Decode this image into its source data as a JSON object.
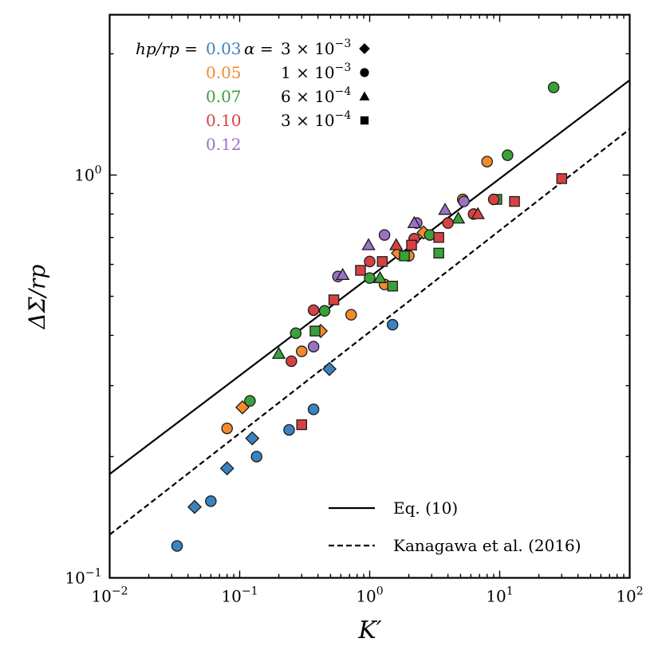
{
  "chart_data": {
    "type": "scatter",
    "title": "",
    "xlabel": "K′",
    "ylabel": "ΔΣ/rp",
    "xscale": "log",
    "yscale": "log",
    "xlim": [
      0.01,
      100
    ],
    "ylim": [
      0.1,
      2.5
    ],
    "xticks": [
      {
        "value": 0.01,
        "base": "10",
        "exp": "−2"
      },
      {
        "value": 0.1,
        "base": "10",
        "exp": "−1"
      },
      {
        "value": 1,
        "base": "10",
        "exp": "0"
      },
      {
        "value": 10,
        "base": "10",
        "exp": "1"
      },
      {
        "value": 100,
        "base": "10",
        "exp": "2"
      }
    ],
    "yticks": [
      {
        "value": 0.1,
        "base": "10",
        "exp": "−1"
      },
      {
        "value": 1,
        "base": "10",
        "exp": "0"
      }
    ],
    "key": {
      "hp_label": "hp/rp =",
      "alpha_label": "α =",
      "hp_entries": [
        {
          "label": "0.03",
          "color": "#3a82c0"
        },
        {
          "label": "0.05",
          "color": "#f5892b"
        },
        {
          "label": "0.07",
          "color": "#3aa13a"
        },
        {
          "label": "0.10",
          "color": "#d84143"
        },
        {
          "label": "0.12",
          "color": "#9a72c4"
        }
      ],
      "alpha_entries": [
        {
          "mantissa": "3 × 10",
          "exp": "−3",
          "marker": "diamond"
        },
        {
          "mantissa": "1 × 10",
          "exp": "−3",
          "marker": "circle"
        },
        {
          "mantissa": "6 × 10",
          "exp": "−4",
          "marker": "triangle"
        },
        {
          "mantissa": "3 × 10",
          "exp": "−4",
          "marker": "square"
        }
      ]
    },
    "lines": [
      {
        "name": "Eq. (10)",
        "style": "solid",
        "x": [
          0.01,
          100
        ],
        "y": [
          0.181,
          1.72
        ]
      },
      {
        "name": "Kanagawa et al. (2016)",
        "style": "dashed",
        "x": [
          0.01,
          100
        ],
        "y": [
          0.128,
          1.3
        ]
      }
    ],
    "legend_position": "bottom-right",
    "points": [
      {
        "x": 0.033,
        "y": 0.12,
        "marker": "circle",
        "color": "#3a82c0"
      },
      {
        "x": 0.06,
        "y": 0.155,
        "marker": "circle",
        "color": "#3a82c0"
      },
      {
        "x": 0.135,
        "y": 0.2,
        "marker": "circle",
        "color": "#3a82c0"
      },
      {
        "x": 0.24,
        "y": 0.233,
        "marker": "circle",
        "color": "#3a82c0"
      },
      {
        "x": 0.37,
        "y": 0.262,
        "marker": "circle",
        "color": "#3a82c0"
      },
      {
        "x": 1.5,
        "y": 0.425,
        "marker": "circle",
        "color": "#3a82c0"
      },
      {
        "x": 0.045,
        "y": 0.15,
        "marker": "diamond",
        "color": "#3a82c0"
      },
      {
        "x": 0.08,
        "y": 0.187,
        "marker": "diamond",
        "color": "#3a82c0"
      },
      {
        "x": 0.125,
        "y": 0.222,
        "marker": "diamond",
        "color": "#3a82c0"
      },
      {
        "x": 0.49,
        "y": 0.33,
        "marker": "diamond",
        "color": "#3a82c0"
      },
      {
        "x": 0.08,
        "y": 0.235,
        "marker": "circle",
        "color": "#f5892b"
      },
      {
        "x": 0.3,
        "y": 0.365,
        "marker": "circle",
        "color": "#f5892b"
      },
      {
        "x": 0.72,
        "y": 0.45,
        "marker": "circle",
        "color": "#f5892b"
      },
      {
        "x": 1.3,
        "y": 0.535,
        "marker": "circle",
        "color": "#f5892b"
      },
      {
        "x": 2.0,
        "y": 0.63,
        "marker": "circle",
        "color": "#f5892b"
      },
      {
        "x": 5.2,
        "y": 0.87,
        "marker": "circle",
        "color": "#f5892b"
      },
      {
        "x": 8.0,
        "y": 1.08,
        "marker": "circle",
        "color": "#f5892b"
      },
      {
        "x": 0.105,
        "y": 0.265,
        "marker": "diamond",
        "color": "#f5892b"
      },
      {
        "x": 0.42,
        "y": 0.41,
        "marker": "diamond",
        "color": "#f5892b"
      },
      {
        "x": 1.65,
        "y": 0.64,
        "marker": "diamond",
        "color": "#f5892b"
      },
      {
        "x": 2.6,
        "y": 0.72,
        "marker": "diamond",
        "color": "#f5892b"
      },
      {
        "x": 0.12,
        "y": 0.275,
        "marker": "circle",
        "color": "#3aa13a"
      },
      {
        "x": 0.27,
        "y": 0.405,
        "marker": "circle",
        "color": "#3aa13a"
      },
      {
        "x": 0.45,
        "y": 0.46,
        "marker": "circle",
        "color": "#3aa13a"
      },
      {
        "x": 1.0,
        "y": 0.555,
        "marker": "circle",
        "color": "#3aa13a"
      },
      {
        "x": 2.9,
        "y": 0.71,
        "marker": "circle",
        "color": "#3aa13a"
      },
      {
        "x": 11.5,
        "y": 1.12,
        "marker": "circle",
        "color": "#3aa13a"
      },
      {
        "x": 26.0,
        "y": 1.65,
        "marker": "circle",
        "color": "#3aa13a"
      },
      {
        "x": 0.2,
        "y": 0.36,
        "marker": "triangle",
        "color": "#3aa13a"
      },
      {
        "x": 1.2,
        "y": 0.555,
        "marker": "triangle",
        "color": "#3aa13a"
      },
      {
        "x": 4.8,
        "y": 0.78,
        "marker": "triangle",
        "color": "#3aa13a"
      },
      {
        "x": 0.38,
        "y": 0.41,
        "marker": "square",
        "color": "#3aa13a"
      },
      {
        "x": 1.5,
        "y": 0.53,
        "marker": "square",
        "color": "#3aa13a"
      },
      {
        "x": 1.85,
        "y": 0.63,
        "marker": "square",
        "color": "#3aa13a"
      },
      {
        "x": 3.4,
        "y": 0.64,
        "marker": "square",
        "color": "#3aa13a"
      },
      {
        "x": 9.5,
        "y": 0.87,
        "marker": "square",
        "color": "#3aa13a"
      },
      {
        "x": 0.25,
        "y": 0.345,
        "marker": "circle",
        "color": "#d84143"
      },
      {
        "x": 0.37,
        "y": 0.462,
        "marker": "circle",
        "color": "#d84143"
      },
      {
        "x": 1.0,
        "y": 0.61,
        "marker": "circle",
        "color": "#d84143"
      },
      {
        "x": 2.2,
        "y": 0.695,
        "marker": "circle",
        "color": "#d84143"
      },
      {
        "x": 4.0,
        "y": 0.76,
        "marker": "circle",
        "color": "#d84143"
      },
      {
        "x": 6.3,
        "y": 0.8,
        "marker": "circle",
        "color": "#d84143"
      },
      {
        "x": 9.0,
        "y": 0.87,
        "marker": "circle",
        "color": "#d84143"
      },
      {
        "x": 1.6,
        "y": 0.67,
        "marker": "triangle",
        "color": "#d84143"
      },
      {
        "x": 6.8,
        "y": 0.8,
        "marker": "triangle",
        "color": "#d84143"
      },
      {
        "x": 0.3,
        "y": 0.24,
        "marker": "square",
        "color": "#d84143"
      },
      {
        "x": 0.53,
        "y": 0.49,
        "marker": "square",
        "color": "#d84143"
      },
      {
        "x": 0.85,
        "y": 0.58,
        "marker": "square",
        "color": "#d84143"
      },
      {
        "x": 1.25,
        "y": 0.61,
        "marker": "square",
        "color": "#d84143"
      },
      {
        "x": 2.1,
        "y": 0.67,
        "marker": "square",
        "color": "#d84143"
      },
      {
        "x": 3.4,
        "y": 0.7,
        "marker": "square",
        "color": "#d84143"
      },
      {
        "x": 13.0,
        "y": 0.86,
        "marker": "square",
        "color": "#d84143"
      },
      {
        "x": 30.0,
        "y": 0.98,
        "marker": "square",
        "color": "#d84143"
      },
      {
        "x": 0.37,
        "y": 0.375,
        "marker": "circle",
        "color": "#9a72c4"
      },
      {
        "x": 0.57,
        "y": 0.56,
        "marker": "circle",
        "color": "#9a72c4"
      },
      {
        "x": 1.3,
        "y": 0.71,
        "marker": "circle",
        "color": "#9a72c4"
      },
      {
        "x": 2.3,
        "y": 0.76,
        "marker": "circle",
        "color": "#9a72c4"
      },
      {
        "x": 5.3,
        "y": 0.86,
        "marker": "circle",
        "color": "#9a72c4"
      },
      {
        "x": 0.62,
        "y": 0.565,
        "marker": "triangle",
        "color": "#9a72c4"
      },
      {
        "x": 0.98,
        "y": 0.67,
        "marker": "triangle",
        "color": "#9a72c4"
      },
      {
        "x": 2.2,
        "y": 0.76,
        "marker": "triangle",
        "color": "#9a72c4"
      },
      {
        "x": 3.8,
        "y": 0.82,
        "marker": "triangle",
        "color": "#9a72c4"
      }
    ]
  }
}
